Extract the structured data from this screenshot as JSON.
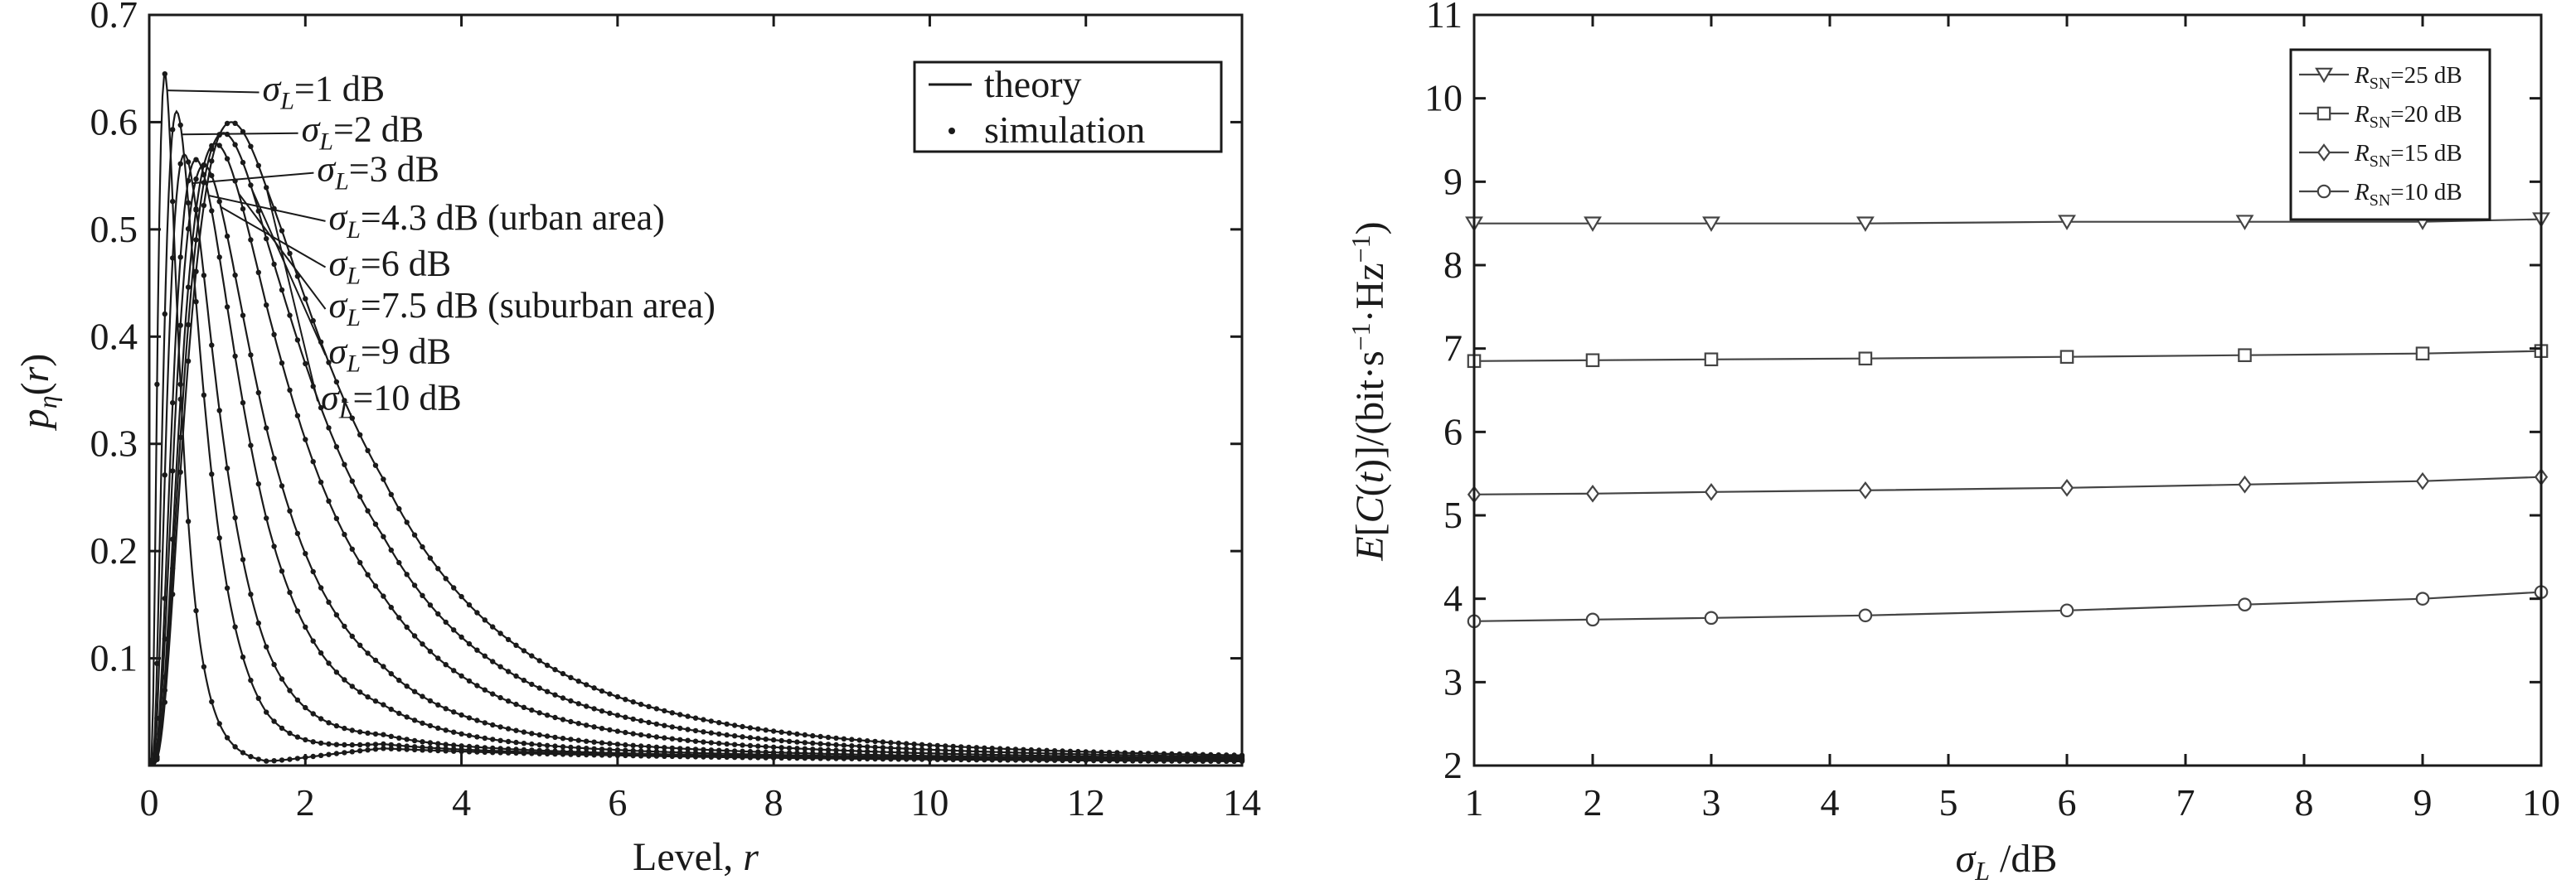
{
  "chart_data": [
    {
      "type": "line",
      "xlabel": "Level, r",
      "ylabel": "pη(r)",
      "xlim": [
        0,
        14
      ],
      "ylim": [
        0,
        0.7
      ],
      "xticks": [
        0,
        2,
        4,
        6,
        8,
        10,
        12,
        14
      ],
      "yticks": [
        0.1,
        0.2,
        0.3,
        0.4,
        0.5,
        0.6,
        0.7
      ],
      "grid": false,
      "legend": {
        "placement": "top-right",
        "entries": [
          "theory",
          "simulation"
        ]
      },
      "series": [
        {
          "sigma_db": 1,
          "label": "σL=1 dB",
          "peak_x": 0.2,
          "peak_y": 0.645
        },
        {
          "sigma_db": 2,
          "label": "σL=2 dB",
          "peak_x": 0.35,
          "peak_y": 0.61
        },
        {
          "sigma_db": 3,
          "label": "σL=3 dB",
          "peak_x": 0.45,
          "peak_y": 0.57
        },
        {
          "sigma_db": 4.3,
          "label": "σL=4.3 dB (urban area)",
          "peak_x": 0.6,
          "peak_y": 0.565
        },
        {
          "sigma_db": 6,
          "label": "σL=6 dB",
          "peak_x": 0.7,
          "peak_y": 0.56
        },
        {
          "sigma_db": 7.5,
          "label": "σL=7.5 dB (suburban area)",
          "peak_x": 0.85,
          "peak_y": 0.58
        },
        {
          "sigma_db": 9,
          "label": "σL=9 dB",
          "peak_x": 0.95,
          "peak_y": 0.59
        },
        {
          "sigma_db": 10,
          "label": "σL=10 dB",
          "peak_x": 1.05,
          "peak_y": 0.6
        }
      ],
      "annotations": [
        {
          "prefix": "σ",
          "sub": "L",
          "text": "=1 dB",
          "at": [
            1.45,
            0.62
          ]
        },
        {
          "prefix": "σ",
          "sub": "L",
          "text": "=2 dB",
          "at": [
            1.95,
            0.582
          ]
        },
        {
          "prefix": "σ",
          "sub": "L",
          "text": "=3 dB",
          "at": [
            2.15,
            0.545
          ]
        },
        {
          "prefix": "σ",
          "sub": "L",
          "text": "=4.3 dB (urban area)",
          "at": [
            2.3,
            0.5
          ]
        },
        {
          "prefix": "σ",
          "sub": "L",
          "text": "=6 dB",
          "at": [
            2.3,
            0.457
          ]
        },
        {
          "prefix": "σ",
          "sub": "L",
          "text": "=7.5 dB (suburban area)",
          "at": [
            2.3,
            0.418
          ]
        },
        {
          "prefix": "σ",
          "sub": "L",
          "text": "=9 dB",
          "at": [
            2.3,
            0.375
          ]
        },
        {
          "prefix": "σ",
          "sub": "L",
          "text": "=10 dB",
          "at": [
            2.2,
            0.332
          ]
        }
      ]
    },
    {
      "type": "line",
      "xlabel": "σL /dB",
      "ylabel": "E[C(t)]/(bit·s⁻¹·Hz⁻¹)",
      "xlim": [
        1,
        10
      ],
      "ylim": [
        2,
        11
      ],
      "xticks": [
        1,
        2,
        3,
        4,
        5,
        6,
        7,
        8,
        9,
        10
      ],
      "yticks": [
        2,
        3,
        4,
        5,
        6,
        7,
        8,
        9,
        10,
        11
      ],
      "grid": false,
      "legend": {
        "placement": "top-right"
      },
      "x": [
        1,
        2,
        3,
        4.3,
        6,
        7.5,
        9,
        10
      ],
      "series": [
        {
          "name": "RSN=25 dB",
          "marker": "triangle-down",
          "values": [
            8.5,
            8.5,
            8.5,
            8.5,
            8.52,
            8.52,
            8.52,
            8.55
          ]
        },
        {
          "name": "RSN=20 dB",
          "marker": "square",
          "values": [
            6.85,
            6.86,
            6.87,
            6.88,
            6.9,
            6.92,
            6.94,
            6.97
          ]
        },
        {
          "name": "RSN=15 dB",
          "marker": "diamond",
          "values": [
            5.25,
            5.26,
            5.28,
            5.3,
            5.33,
            5.37,
            5.41,
            5.46
          ]
        },
        {
          "name": "RSN=10 dB",
          "marker": "circle",
          "values": [
            3.73,
            3.75,
            3.77,
            3.8,
            3.86,
            3.93,
            4.0,
            4.08
          ]
        }
      ]
    }
  ]
}
